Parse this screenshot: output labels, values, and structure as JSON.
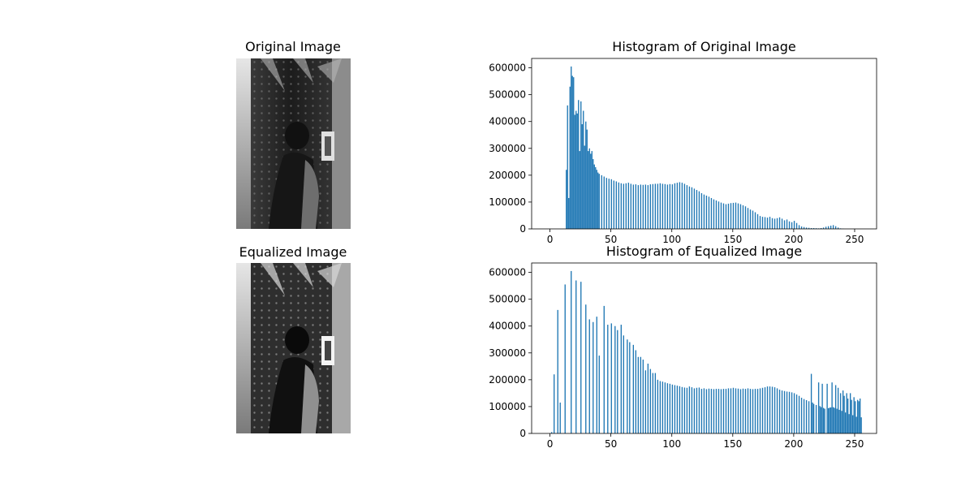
{
  "panels": {
    "original_image": {
      "title": "Original Image"
    },
    "equalized_image": {
      "title": "Equalized Image"
    }
  },
  "chart_data": [
    {
      "type": "bar",
      "title": "Histogram of Original Image",
      "xlabel": "",
      "ylabel": "",
      "xlim": [
        -15,
        268
      ],
      "ylim": [
        0,
        635000
      ],
      "xticks": [
        0,
        50,
        100,
        150,
        200,
        250
      ],
      "yticks": [
        0,
        100000,
        200000,
        300000,
        400000,
        500000,
        600000
      ],
      "ytick_labels": [
        "0",
        "100000",
        "200000",
        "300000",
        "400000",
        "500000",
        "600000"
      ],
      "grid": false,
      "color": "#1f77b4",
      "bins": [
        [
          13,
          220000
        ],
        [
          14,
          460000
        ],
        [
          15,
          115000
        ],
        [
          16,
          530000
        ],
        [
          17,
          605000
        ],
        [
          18,
          570000
        ],
        [
          19,
          565000
        ],
        [
          20,
          425000
        ],
        [
          21,
          440000
        ],
        [
          22,
          430000
        ],
        [
          23,
          480000
        ],
        [
          24,
          290000
        ],
        [
          25,
          475000
        ],
        [
          26,
          390000
        ],
        [
          27,
          440000
        ],
        [
          28,
          310000
        ],
        [
          29,
          400000
        ],
        [
          30,
          370000
        ],
        [
          31,
          290000
        ],
        [
          32,
          300000
        ],
        [
          33,
          280000
        ],
        [
          34,
          290000
        ],
        [
          35,
          260000
        ],
        [
          36,
          240000
        ],
        [
          37,
          230000
        ],
        [
          38,
          220000
        ],
        [
          39,
          210000
        ],
        [
          40,
          205000
        ],
        [
          42,
          200000
        ],
        [
          44,
          195000
        ],
        [
          46,
          190000
        ],
        [
          48,
          187000
        ],
        [
          50,
          185000
        ],
        [
          52,
          180000
        ],
        [
          54,
          177000
        ],
        [
          56,
          173000
        ],
        [
          58,
          170000
        ],
        [
          60,
          168000
        ],
        [
          62,
          170000
        ],
        [
          64,
          172000
        ],
        [
          66,
          168000
        ],
        [
          68,
          165000
        ],
        [
          70,
          166000
        ],
        [
          72,
          163000
        ],
        [
          74,
          165000
        ],
        [
          76,
          164000
        ],
        [
          78,
          165000
        ],
        [
          80,
          163000
        ],
        [
          82,
          166000
        ],
        [
          84,
          167000
        ],
        [
          86,
          168000
        ],
        [
          88,
          168000
        ],
        [
          90,
          170000
        ],
        [
          92,
          168000
        ],
        [
          94,
          167000
        ],
        [
          96,
          165000
        ],
        [
          98,
          167000
        ],
        [
          100,
          166000
        ],
        [
          102,
          170000
        ],
        [
          104,
          172000
        ],
        [
          106,
          174000
        ],
        [
          108,
          172000
        ],
        [
          110,
          168000
        ],
        [
          112,
          163000
        ],
        [
          114,
          158000
        ],
        [
          116,
          155000
        ],
        [
          118,
          150000
        ],
        [
          120,
          145000
        ],
        [
          122,
          140000
        ],
        [
          124,
          133000
        ],
        [
          126,
          128000
        ],
        [
          128,
          124000
        ],
        [
          130,
          120000
        ],
        [
          132,
          115000
        ],
        [
          134,
          110000
        ],
        [
          136,
          106000
        ],
        [
          138,
          102000
        ],
        [
          140,
          98000
        ],
        [
          142,
          95000
        ],
        [
          144,
          92000
        ],
        [
          146,
          94000
        ],
        [
          148,
          96000
        ],
        [
          150,
          97000
        ],
        [
          152,
          98000
        ],
        [
          154,
          95000
        ],
        [
          156,
          92000
        ],
        [
          158,
          88000
        ],
        [
          160,
          84000
        ],
        [
          162,
          78000
        ],
        [
          164,
          72000
        ],
        [
          166,
          68000
        ],
        [
          168,
          62000
        ],
        [
          170,
          55000
        ],
        [
          172,
          48000
        ],
        [
          174,
          45000
        ],
        [
          176,
          44000
        ],
        [
          178,
          42000
        ],
        [
          180,
          45000
        ],
        [
          182,
          40000
        ],
        [
          184,
          38000
        ],
        [
          186,
          40000
        ],
        [
          188,
          43000
        ],
        [
          190,
          38000
        ],
        [
          192,
          32000
        ],
        [
          194,
          35000
        ],
        [
          196,
          28000
        ],
        [
          198,
          25000
        ],
        [
          200,
          30000
        ],
        [
          202,
          22000
        ],
        [
          204,
          14000
        ],
        [
          206,
          9000
        ],
        [
          208,
          7000
        ],
        [
          210,
          5000
        ],
        [
          212,
          4000
        ],
        [
          214,
          3000
        ],
        [
          216,
          3000
        ],
        [
          218,
          2500
        ],
        [
          220,
          2000
        ],
        [
          222,
          3000
        ],
        [
          224,
          5000
        ],
        [
          226,
          8000
        ],
        [
          228,
          10000
        ],
        [
          230,
          12000
        ],
        [
          232,
          14000
        ],
        [
          234,
          10000
        ],
        [
          236,
          5000
        ],
        [
          238,
          2000
        ],
        [
          240,
          1000
        ]
      ]
    },
    {
      "type": "bar",
      "title": "Histogram of Equalized Image",
      "xlabel": "",
      "ylabel": "",
      "xlim": [
        -15,
        268
      ],
      "ylim": [
        0,
        635000
      ],
      "xticks": [
        0,
        50,
        100,
        150,
        200,
        250
      ],
      "yticks": [
        0,
        100000,
        200000,
        300000,
        400000,
        500000,
        600000
      ],
      "ytick_labels": [
        "0",
        "100000",
        "200000",
        "300000",
        "400000",
        "500000",
        "600000"
      ],
      "grid": false,
      "color": "#1f77b4",
      "bins": [
        [
          1,
          5000
        ],
        [
          3,
          220000
        ],
        [
          6,
          460000
        ],
        [
          8,
          115000
        ],
        [
          12,
          555000
        ],
        [
          17,
          605000
        ],
        [
          21,
          570000
        ],
        [
          25,
          565000
        ],
        [
          29,
          480000
        ],
        [
          32,
          425000
        ],
        [
          35,
          415000
        ],
        [
          38,
          435000
        ],
        [
          40,
          290000
        ],
        [
          44,
          475000
        ],
        [
          47,
          405000
        ],
        [
          50,
          410000
        ],
        [
          53,
          400000
        ],
        [
          55,
          385000
        ],
        [
          58,
          405000
        ],
        [
          60,
          365000
        ],
        [
          63,
          350000
        ],
        [
          65,
          340000
        ],
        [
          68,
          330000
        ],
        [
          70,
          310000
        ],
        [
          72,
          285000
        ],
        [
          74,
          285000
        ],
        [
          76,
          275000
        ],
        [
          78,
          235000
        ],
        [
          80,
          260000
        ],
        [
          82,
          240000
        ],
        [
          84,
          225000
        ],
        [
          86,
          225000
        ],
        [
          88,
          200000
        ],
        [
          90,
          195000
        ],
        [
          92,
          193000
        ],
        [
          94,
          190000
        ],
        [
          96,
          187000
        ],
        [
          98,
          185000
        ],
        [
          100,
          182000
        ],
        [
          102,
          180000
        ],
        [
          104,
          178000
        ],
        [
          106,
          176000
        ],
        [
          108,
          173000
        ],
        [
          110,
          171000
        ],
        [
          112,
          170000
        ],
        [
          114,
          175000
        ],
        [
          116,
          172000
        ],
        [
          118,
          168000
        ],
        [
          120,
          170000
        ],
        [
          122,
          171000
        ],
        [
          124,
          166000
        ],
        [
          126,
          168000
        ],
        [
          128,
          165000
        ],
        [
          130,
          167000
        ],
        [
          132,
          166000
        ],
        [
          134,
          165000
        ],
        [
          136,
          166000
        ],
        [
          138,
          166000
        ],
        [
          140,
          165000
        ],
        [
          142,
          166000
        ],
        [
          144,
          166000
        ],
        [
          146,
          168000
        ],
        [
          148,
          168000
        ],
        [
          150,
          170000
        ],
        [
          152,
          168000
        ],
        [
          154,
          167000
        ],
        [
          156,
          165000
        ],
        [
          158,
          167000
        ],
        [
          160,
          166000
        ],
        [
          162,
          168000
        ],
        [
          164,
          166000
        ],
        [
          166,
          165000
        ],
        [
          168,
          166000
        ],
        [
          170,
          166000
        ],
        [
          172,
          168000
        ],
        [
          174,
          170000
        ],
        [
          176,
          172000
        ],
        [
          178,
          175000
        ],
        [
          180,
          175000
        ],
        [
          182,
          174000
        ],
        [
          184,
          172000
        ],
        [
          186,
          168000
        ],
        [
          188,
          163000
        ],
        [
          190,
          160000
        ],
        [
          192,
          158000
        ],
        [
          194,
          156000
        ],
        [
          196,
          155000
        ],
        [
          198,
          153000
        ],
        [
          200,
          150000
        ],
        [
          202,
          145000
        ],
        [
          204,
          140000
        ],
        [
          206,
          133000
        ],
        [
          208,
          128000
        ],
        [
          210,
          124000
        ],
        [
          212,
          120000
        ],
        [
          214,
          222000
        ],
        [
          215,
          115000
        ],
        [
          216,
          110000
        ],
        [
          218,
          106000
        ],
        [
          220,
          190000
        ],
        [
          221,
          102000
        ],
        [
          222,
          98000
        ],
        [
          223,
          185000
        ],
        [
          224,
          95000
        ],
        [
          225,
          92000
        ],
        [
          227,
          185000
        ],
        [
          228,
          94000
        ],
        [
          229,
          96000
        ],
        [
          230,
          97000
        ],
        [
          231,
          190000
        ],
        [
          232,
          98000
        ],
        [
          233,
          95000
        ],
        [
          234,
          180000
        ],
        [
          235,
          92000
        ],
        [
          236,
          170000
        ],
        [
          237,
          88000
        ],
        [
          238,
          150000
        ],
        [
          239,
          84000
        ],
        [
          240,
          160000
        ],
        [
          241,
          140000
        ],
        [
          242,
          78000
        ],
        [
          243,
          150000
        ],
        [
          244,
          130000
        ],
        [
          245,
          72000
        ],
        [
          246,
          150000
        ],
        [
          247,
          125000
        ],
        [
          248,
          68000
        ],
        [
          249,
          135000
        ],
        [
          250,
          120000
        ],
        [
          251,
          62000
        ],
        [
          252,
          125000
        ],
        [
          253,
          120000
        ],
        [
          254,
          130000
        ],
        [
          255,
          60000
        ]
      ]
    }
  ]
}
